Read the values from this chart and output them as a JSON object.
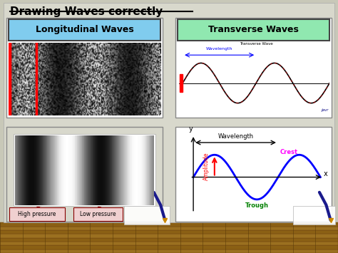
{
  "title": "Drawing Waves correctly",
  "bg_color": "#c8c8b8",
  "floor_color": "#8B6914",
  "panel_bg": "#d8d8cc",
  "top_left_label": "Longitudinal Waves",
  "top_left_bg": "#80ccee",
  "top_right_label": "Transverse Waves",
  "top_right_bg": "#90e8b0",
  "wavelength_label": "Wavelength",
  "crest_label": "Crest",
  "amplitude_label": "Amplitude",
  "trough_label": "Trough",
  "high_pressure": "High pressure",
  "low_pressure": "Low pressure",
  "transverse_wave_title": "Transverse Wave",
  "javr_text": "javr"
}
